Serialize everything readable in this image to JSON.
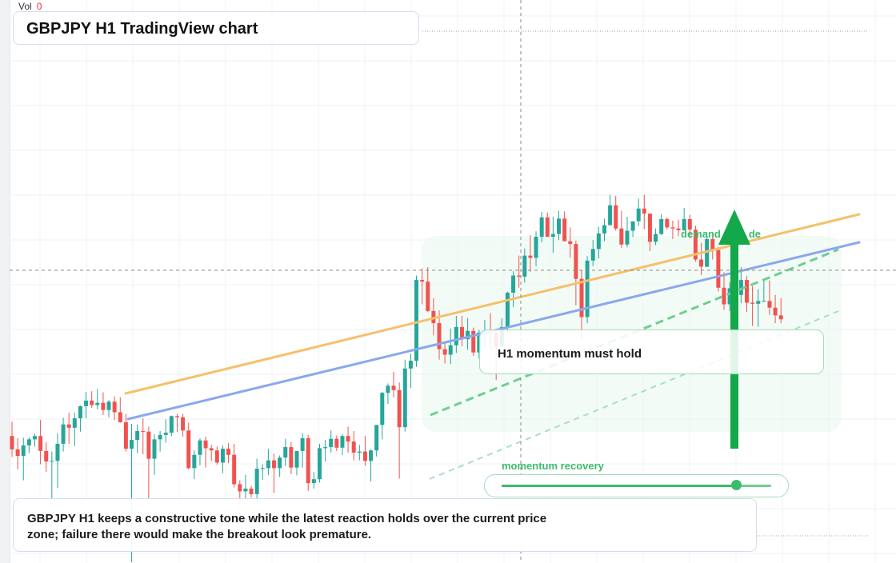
{
  "header": {
    "vol_label": "Vol",
    "vol_value": "0",
    "title": "GBPJPY H1 TradingView chart"
  },
  "annotations": {
    "demand_label": "demand",
    "demand_label_tail": "de",
    "momentum_box": "H1 momentum must hold",
    "recovery_label": "momentum recovery",
    "recovery_level": 0.87,
    "note": "GBPJPY H1 keeps a constructive tone while the latest reaction holds over the current price zone; failure there would make the breakout look premature."
  },
  "colors": {
    "up": "#26a69a",
    "down": "#ef5350",
    "support_line": "#8aa8ec",
    "trend_line": "#f6c06a",
    "signal_green": "#3dbb6c",
    "arrow_green": "#13a84a",
    "crosshair": "#888888"
  },
  "chart_data": {
    "type": "candlestick",
    "title": "GBPJPY H1 TradingView chart",
    "xlabel": "",
    "ylabel": "",
    "ylim": [
      0,
      100
    ],
    "x_count": 144,
    "grid": true,
    "crosshair": {
      "x": 88,
      "y": 49.4
    },
    "last_price_line": 93.0,
    "candles_ohlc": [
      [
        22.8,
        25.4,
        19.0,
        20.4
      ],
      [
        20.4,
        22.4,
        16.8,
        19.2
      ],
      [
        19.2,
        22.5,
        14.8,
        21.1
      ],
      [
        21.1,
        22.6,
        19.7,
        22.2
      ],
      [
        22.2,
        23.2,
        20.9,
        22.8
      ],
      [
        22.8,
        25.7,
        17.7,
        20.1
      ],
      [
        20.1,
        21.7,
        16.3,
        18.2
      ],
      [
        18.2,
        20.0,
        11.3,
        18.3
      ],
      [
        18.3,
        23.3,
        13.4,
        21.4
      ],
      [
        21.4,
        26.1,
        20.0,
        24.9
      ],
      [
        24.9,
        27.0,
        21.4,
        24.3
      ],
      [
        24.3,
        27.0,
        21.0,
        26.0
      ],
      [
        26.0,
        28.3,
        23.6,
        28.2
      ],
      [
        28.2,
        30.8,
        26.0,
        29.2
      ],
      [
        29.2,
        30.9,
        27.9,
        28.4
      ],
      [
        28.4,
        31.3,
        27.6,
        28.8
      ],
      [
        28.8,
        30.7,
        26.6,
        27.5
      ],
      [
        27.5,
        29.3,
        26.2,
        29.0
      ],
      [
        29.0,
        30.0,
        25.7,
        27.1
      ],
      [
        27.1,
        29.8,
        25.2,
        25.3
      ],
      [
        25.3,
        26.8,
        20.0,
        20.5
      ],
      [
        20.5,
        25.0,
        0.0,
        22.1
      ],
      [
        22.1,
        24.9,
        19.7,
        23.7
      ],
      [
        23.7,
        26.0,
        19.5,
        23.6
      ],
      [
        23.6,
        24.5,
        10.1,
        18.7
      ],
      [
        18.7,
        23.1,
        15.8,
        22.2
      ],
      [
        22.2,
        23.7,
        20.0,
        23.0
      ],
      [
        23.0,
        25.8,
        21.6,
        23.4
      ],
      [
        23.4,
        26.5,
        22.8,
        26.4
      ],
      [
        26.4,
        26.8,
        23.5,
        26.2
      ],
      [
        26.2,
        26.8,
        22.7,
        23.8
      ],
      [
        23.8,
        25.2,
        16.8,
        17.0
      ],
      [
        17.0,
        20.2,
        15.0,
        19.4
      ],
      [
        19.4,
        22.4,
        17.5,
        22.0
      ],
      [
        22.0,
        22.7,
        17.1,
        20.6
      ],
      [
        20.6,
        21.2,
        18.3,
        20.2
      ],
      [
        20.2,
        20.9,
        17.6,
        18.0
      ],
      [
        18.0,
        21.1,
        16.1,
        20.5
      ],
      [
        20.5,
        21.5,
        17.9,
        19.4
      ],
      [
        19.4,
        21.4,
        13.5,
        14.1
      ],
      [
        14.1,
        14.8,
        9.9,
        12.8
      ],
      [
        12.8,
        15.8,
        11.2,
        13.3
      ],
      [
        13.3,
        13.8,
        11.7,
        12.3
      ],
      [
        12.3,
        18.7,
        10.7,
        16.9
      ],
      [
        16.9,
        17.7,
        14.9,
        17.0
      ],
      [
        17.0,
        20.5,
        15.7,
        18.4
      ],
      [
        18.4,
        19.6,
        12.5,
        17.0
      ],
      [
        17.0,
        19.3,
        15.4,
        18.9
      ],
      [
        18.9,
        22.3,
        17.4,
        20.8
      ],
      [
        20.8,
        21.7,
        15.9,
        17.1
      ],
      [
        17.1,
        20.1,
        15.7,
        20.1
      ],
      [
        20.1,
        23.3,
        17.1,
        22.4
      ],
      [
        22.4,
        23.0,
        12.9,
        14.3
      ],
      [
        14.3,
        16.3,
        13.3,
        15.0
      ],
      [
        15.0,
        21.4,
        14.4,
        20.6
      ],
      [
        20.6,
        22.1,
        18.2,
        20.8
      ],
      [
        20.8,
        23.8,
        19.8,
        22.3
      ],
      [
        22.3,
        22.9,
        20.1,
        20.7
      ],
      [
        20.7,
        23.2,
        19.4,
        22.8
      ],
      [
        22.8,
        24.5,
        19.8,
        21.8
      ],
      [
        21.8,
        23.7,
        18.4,
        19.8
      ],
      [
        19.8,
        21.2,
        18.4,
        20.0
      ],
      [
        20.0,
        22.8,
        17.4,
        18.3
      ],
      [
        18.3,
        20.4,
        14.6,
        20.2
      ],
      [
        20.2,
        24.8,
        19.1,
        24.8
      ],
      [
        24.8,
        30.8,
        22.2,
        30.6
      ],
      [
        30.6,
        32.3,
        28.6,
        31.9
      ],
      [
        31.9,
        34.4,
        29.8,
        31.1
      ],
      [
        31.1,
        32.5,
        15.1,
        24.4
      ],
      [
        24.4,
        36.6,
        23.6,
        35.0
      ],
      [
        35.0,
        37.7,
        31.5,
        36.4
      ],
      [
        36.4,
        51.8,
        35.3,
        51.0
      ],
      [
        51.0,
        53.1,
        46.6,
        50.7
      ],
      [
        50.7,
        53.3,
        45.2,
        45.4
      ],
      [
        45.4,
        47.7,
        41.0,
        43.2
      ],
      [
        43.2,
        45.5,
        36.6,
        38.5
      ],
      [
        38.5,
        39.7,
        35.9,
        37.5
      ],
      [
        37.5,
        42.2,
        35.8,
        39.2
      ],
      [
        39.2,
        44.5,
        37.8,
        42.5
      ],
      [
        42.5,
        44.5,
        39.0,
        40.3
      ],
      [
        40.3,
        44.1,
        38.4,
        41.8
      ],
      [
        41.8,
        42.4,
        37.3,
        37.9
      ],
      [
        37.9,
        42.0,
        36.8,
        41.5
      ],
      [
        41.5,
        43.8,
        38.7,
        41.9
      ],
      [
        41.9,
        45.0,
        38.5,
        41.4
      ],
      [
        41.4,
        41.8,
        32.9,
        39.0
      ],
      [
        39.0,
        44.1,
        38.9,
        42.5
      ],
      [
        42.5,
        48.9,
        41.6,
        48.7
      ],
      [
        48.7,
        52.6,
        46.1,
        51.8
      ],
      [
        51.8,
        55.4,
        49.6,
        51.6
      ],
      [
        51.6,
        56.7,
        50.5,
        55.4
      ],
      [
        55.4,
        59.1,
        52.5,
        55.0
      ],
      [
        55.0,
        59.8,
        53.5,
        58.8
      ],
      [
        58.8,
        63.3,
        57.8,
        62.3
      ],
      [
        62.3,
        63.2,
        58.9,
        58.8
      ],
      [
        58.8,
        62.4,
        55.9,
        59.3
      ],
      [
        59.3,
        63.5,
        58.2,
        62.1
      ],
      [
        62.1,
        63.4,
        58.0,
        58.0
      ],
      [
        58.0,
        60.5,
        55.0,
        57.5
      ],
      [
        57.5,
        58.1,
        46.4,
        51.2
      ],
      [
        51.2,
        52.7,
        40.1,
        44.3
      ],
      [
        44.3,
        55.3,
        43.2,
        54.5
      ],
      [
        54.5,
        58.2,
        53.5,
        56.6
      ],
      [
        56.6,
        60.6,
        54.9,
        59.4
      ],
      [
        59.4,
        62.1,
        58.0,
        60.9
      ],
      [
        60.9,
        66.4,
        60.9,
        64.5
      ],
      [
        64.5,
        66.2,
        59.9,
        60.3
      ],
      [
        60.3,
        63.5,
        56.8,
        57.4
      ],
      [
        57.4,
        62.4,
        56.9,
        59.9
      ],
      [
        59.9,
        61.5,
        58.8,
        61.6
      ],
      [
        61.6,
        65.7,
        60.7,
        63.9
      ],
      [
        63.9,
        66.4,
        60.2,
        63.0
      ],
      [
        63.0,
        63.0,
        56.2,
        57.9
      ],
      [
        57.9,
        60.3,
        57.3,
        59.3
      ],
      [
        59.3,
        62.9,
        59.1,
        62.0
      ],
      [
        62.0,
        62.3,
        60.1,
        60.5
      ],
      [
        60.5,
        61.7,
        58.4,
        60.3
      ],
      [
        60.3,
        61.9,
        58.9,
        60.0
      ],
      [
        60.0,
        64.0,
        59.9,
        62.0
      ],
      [
        62.0,
        62.8,
        58.5,
        60.1
      ],
      [
        60.1,
        60.8,
        54.3,
        54.7
      ],
      [
        54.7,
        57.7,
        51.9,
        53.4
      ],
      [
        53.4,
        59.6,
        53.3,
        58.4
      ],
      [
        58.4,
        59.6,
        54.7,
        56.4
      ],
      [
        56.4,
        57.0,
        48.9,
        49.6
      ],
      [
        49.6,
        52.4,
        45.6,
        46.6
      ],
      [
        46.6,
        50.6,
        45.4,
        49.5
      ],
      [
        49.5,
        50.8,
        44.6,
        48.3
      ],
      [
        48.3,
        53.3,
        46.8,
        51.0
      ],
      [
        51.0,
        51.7,
        45.2,
        46.9
      ],
      [
        46.9,
        49.9,
        42.7,
        46.7
      ],
      [
        46.7,
        49.3,
        42.5,
        47.2
      ],
      [
        47.2,
        51.3,
        47.1,
        47.2
      ],
      [
        47.2,
        50.9,
        44.7,
        46.0
      ],
      [
        46.0,
        48.3,
        43.2,
        44.6
      ],
      [
        44.6,
        47.7,
        43.2,
        43.9
      ]
    ],
    "series": []
  }
}
